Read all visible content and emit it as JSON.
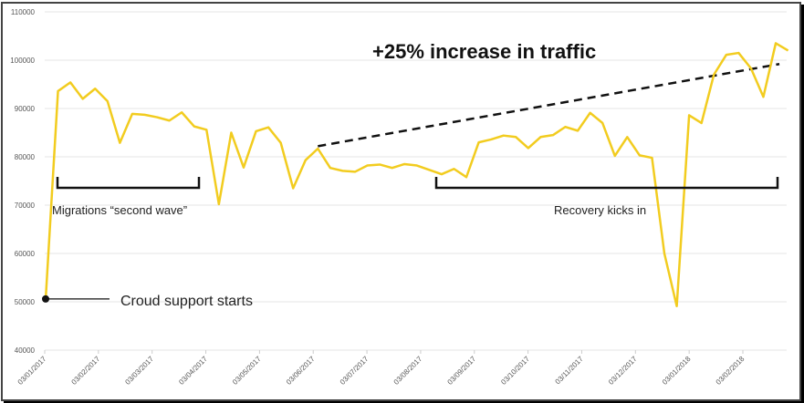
{
  "chart_data": {
    "type": "line",
    "title": "",
    "xlabel": "",
    "ylabel": "",
    "ylim": [
      40000,
      110000
    ],
    "yticks": [
      "40000",
      "50000",
      "60000",
      "70000",
      "80000",
      "90000",
      "100000",
      "110000"
    ],
    "xticks": [
      "03/01/2017",
      "03/02/2017",
      "03/03/2017",
      "03/04/2017",
      "03/05/2017",
      "03/06/2017",
      "03/07/2017",
      "03/08/2017",
      "03/09/2017",
      "03/10/2017",
      "03/11/2017",
      "03/12/2017",
      "03/01/2018",
      "03/02/2018"
    ],
    "grid": true,
    "line_color": "#f2cc1f",
    "x_step": "weekly",
    "values": [
      50400,
      93600,
      95400,
      92000,
      94100,
      91500,
      82900,
      88900,
      88700,
      88200,
      87500,
      89200,
      86300,
      85600,
      70200,
      85000,
      77800,
      85300,
      86100,
      82900,
      73500,
      79300,
      81700,
      77700,
      77100,
      76900,
      78200,
      78400,
      77700,
      78500,
      78200,
      77300,
      76400,
      77500,
      75800,
      83000,
      83600,
      84400,
      84100,
      81800,
      84100,
      84500,
      86200,
      85400,
      89100,
      87000,
      80200,
      84100,
      80300,
      79800,
      60000,
      49100,
      88600,
      87000,
      97000,
      101100,
      101500,
      98300,
      92400,
      103500,
      102000
    ],
    "trendline": {
      "from_week": 22,
      "from_value": 82200,
      "to_week": 59,
      "to_value": 99200,
      "style": "dashed"
    },
    "annotations": {
      "headline": "+25% increase in traffic",
      "second_wave": "Migrations “second wave”",
      "recovery": "Recovery kicks in",
      "croud_support": "Croud support starts"
    }
  }
}
